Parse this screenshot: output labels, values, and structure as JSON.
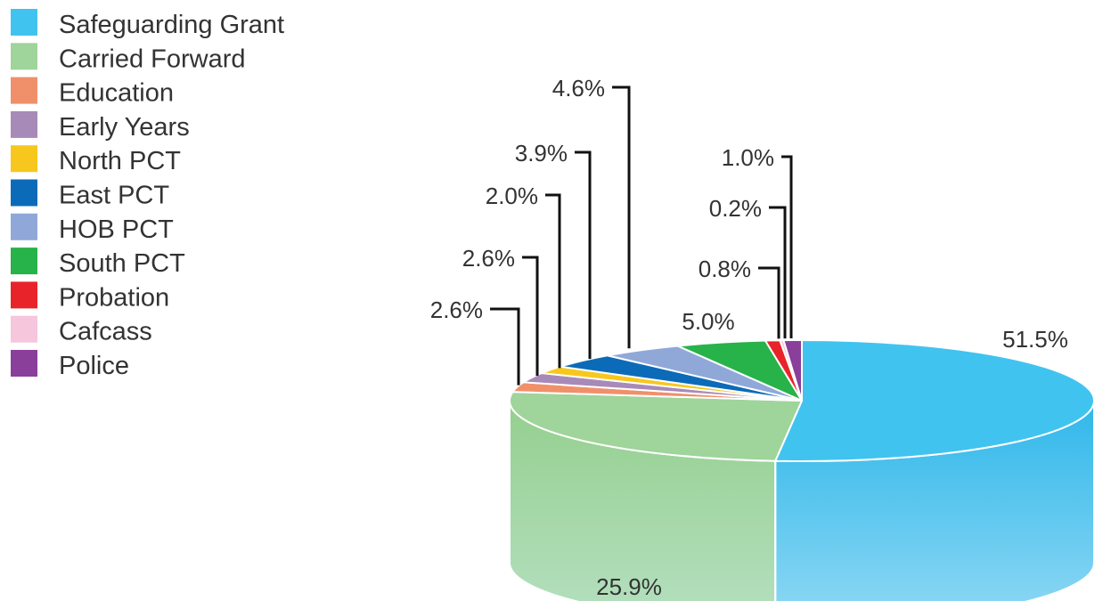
{
  "chart_data": {
    "type": "pie",
    "categories": [
      "Safeguarding Grant",
      "Carried Forward",
      "Education",
      "Early Years",
      "North PCT",
      "East PCT",
      "HOB PCT",
      "South PCT",
      "Probation",
      "Cafcass",
      "Police"
    ],
    "values": [
      51.5,
      25.9,
      2.6,
      2.6,
      2.0,
      3.9,
      4.6,
      5.0,
      0.8,
      0.2,
      1.0
    ],
    "value_labels": [
      "51.5%",
      "25.9%",
      "2.6%",
      "2.6%",
      "2.0%",
      "3.9%",
      "4.6%",
      "5.0%",
      "0.8%",
      "0.2%",
      "1.0%"
    ],
    "colors": [
      "#41c3f0",
      "#9fd49b",
      "#f0906a",
      "#a88ab8",
      "#f7c71e",
      "#0c6bb8",
      "#90a8d8",
      "#27b24a",
      "#e8232a",
      "#f6c6dc",
      "#8a3f9a"
    ],
    "legend_position": "top-left",
    "style": "3d",
    "title": ""
  }
}
